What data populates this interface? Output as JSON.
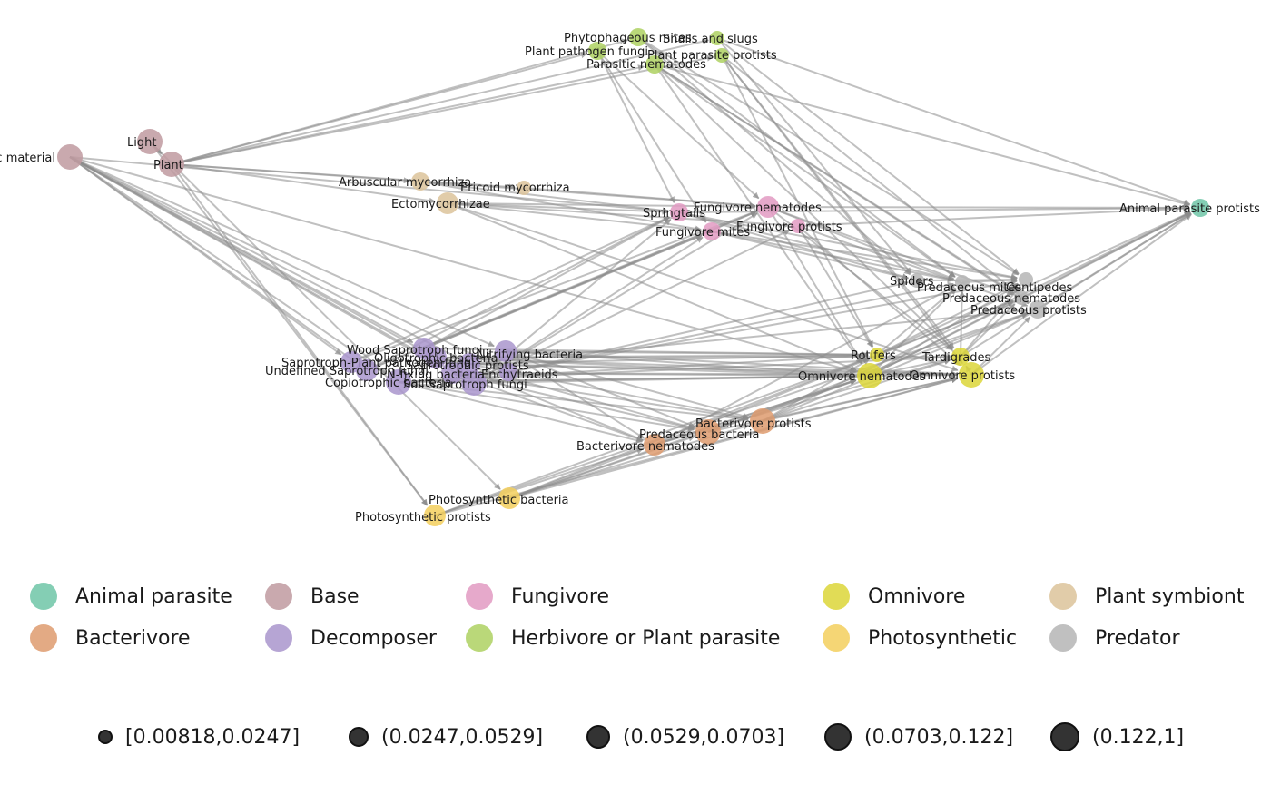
{
  "colors": {
    "Animal parasite": "#6fc6a7",
    "Base": "#c09aa0",
    "Fungivore": "#e29ac2",
    "Omnivore": "#dcd638",
    "Plant symbiont": "#dcc39a",
    "Bacterivore": "#de9b6f",
    "Decomposer": "#a995cc",
    "Herbivore or Plant parasite": "#aed162",
    "Photosynthetic": "#f3cf5d",
    "Predator": "#b5b5b5"
  },
  "nodes": [
    {
      "id": "organic",
      "label": "Organic material",
      "group": "Base",
      "size": 3
    },
    {
      "id": "light",
      "label": "Light",
      "group": "Base",
      "size": 3
    },
    {
      "id": "plant",
      "label": "Plant",
      "group": "Base",
      "size": 3
    },
    {
      "id": "phyto_mites",
      "label": "Phytophageous mites",
      "group": "Herbivore or Plant parasite",
      "size": 1
    },
    {
      "id": "snails",
      "label": "Snails and slugs",
      "group": "Herbivore or Plant parasite",
      "size": 0
    },
    {
      "id": "plant_path_fungi",
      "label": "Plant pathogen fungi",
      "group": "Herbivore or Plant parasite",
      "size": 1
    },
    {
      "id": "plant_par_protists",
      "label": "Plant parasite protists",
      "group": "Herbivore or Plant parasite",
      "size": 0
    },
    {
      "id": "par_nematodes",
      "label": "Parasitic nematodes",
      "group": "Herbivore or Plant parasite",
      "size": 1
    },
    {
      "id": "arb_myc",
      "label": "Arbuscular mycorrhiza",
      "group": "Plant symbiont",
      "size": 1
    },
    {
      "id": "ericoid",
      "label": "Ericoid mycorrhiza",
      "group": "Plant symbiont",
      "size": 0
    },
    {
      "id": "ecto",
      "label": "Ectomycorrhizae",
      "group": "Plant symbiont",
      "size": 2
    },
    {
      "id": "springtails",
      "label": "Springtails",
      "group": "Fungivore",
      "size": 1
    },
    {
      "id": "fung_nem",
      "label": "Fungivore nematodes",
      "group": "Fungivore",
      "size": 2
    },
    {
      "id": "fung_prot",
      "label": "Fungivore protists",
      "group": "Fungivore",
      "size": 0
    },
    {
      "id": "fung_mites",
      "label": "Fungivore mites",
      "group": "Fungivore",
      "size": 1
    },
    {
      "id": "animal_par",
      "label": "Animal parasite protists",
      "group": "Animal parasite",
      "size": 1
    },
    {
      "id": "spiders",
      "label": "Spiders",
      "group": "Predator",
      "size": 0
    },
    {
      "id": "pred_mites",
      "label": "Predaceous mites",
      "group": "Predator",
      "size": 0
    },
    {
      "id": "centipedes",
      "label": "Centipedes",
      "group": "Predator",
      "size": 0
    },
    {
      "id": "pred_nem",
      "label": "Predaceous nematodes",
      "group": "Predator",
      "size": 0
    },
    {
      "id": "pred_prot",
      "label": "Predaceous protists",
      "group": "Predator",
      "size": 1
    },
    {
      "id": "wood_sap",
      "label": "Wood Saprotroph fungi",
      "group": "Decomposer",
      "size": 2
    },
    {
      "id": "oligo",
      "label": "Oligotrophic bacteria",
      "group": "Decomposer",
      "size": 2
    },
    {
      "id": "nitrifying",
      "label": "Nitrifying bacteria",
      "group": "Decomposer",
      "size": 2
    },
    {
      "id": "sap_pl",
      "label": "Saprotroph-Plant pathogen fungi",
      "group": "Decomposer",
      "size": 2
    },
    {
      "id": "sap_prot",
      "label": "Saprotrophic protists",
      "group": "Decomposer",
      "size": 2
    },
    {
      "id": "undef_sap",
      "label": "Undefined Saprotroph fungi",
      "group": "Decomposer",
      "size": 2
    },
    {
      "id": "nfix",
      "label": "N-fixing bacteria",
      "group": "Decomposer",
      "size": 2
    },
    {
      "id": "enchy",
      "label": "Enchytraeids",
      "group": "Decomposer",
      "size": 1
    },
    {
      "id": "copio",
      "label": "Copiotrophic bacteria",
      "group": "Decomposer",
      "size": 3
    },
    {
      "id": "soil_sap",
      "label": "Soil Saprotroph fungi",
      "group": "Decomposer",
      "size": 3
    },
    {
      "id": "rotifers",
      "label": "Rotifers",
      "group": "Omnivore",
      "size": 0
    },
    {
      "id": "tardigrades",
      "label": "Tardigrades",
      "group": "Omnivore",
      "size": 1
    },
    {
      "id": "omni_nem",
      "label": "Omnivore nematodes",
      "group": "Omnivore",
      "size": 3
    },
    {
      "id": "omni_prot",
      "label": "Omnivore protists",
      "group": "Omnivore",
      "size": 3
    },
    {
      "id": "bact_prot",
      "label": "Bacterivore protists",
      "group": "Bacterivore",
      "size": 3
    },
    {
      "id": "pred_bact",
      "label": "Predaceous bacteria",
      "group": "Bacterivore",
      "size": 3
    },
    {
      "id": "bact_nem",
      "label": "Bacterivore nematodes",
      "group": "Bacterivore",
      "size": 2
    },
    {
      "id": "photo_bact",
      "label": "Photosynthetic bacteria",
      "group": "Photosynthetic",
      "size": 2
    },
    {
      "id": "photo_prot",
      "label": "Photosynthetic protists",
      "group": "Photosynthetic",
      "size": 2
    }
  ],
  "edges": [
    [
      "organic",
      "wood_sap"
    ],
    [
      "organic",
      "oligo"
    ],
    [
      "organic",
      "sap_prot"
    ],
    [
      "organic",
      "copio"
    ],
    [
      "organic",
      "soil_sap"
    ],
    [
      "organic",
      "undef_sap"
    ],
    [
      "organic",
      "enchy"
    ],
    [
      "organic",
      "springtails"
    ],
    [
      "organic",
      "omni_nem"
    ],
    [
      "organic",
      "sap_pl"
    ],
    [
      "organic",
      "nitrifying"
    ],
    [
      "organic",
      "nfix"
    ],
    [
      "light",
      "plant"
    ],
    [
      "light",
      "photo_bact"
    ],
    [
      "light",
      "photo_prot"
    ],
    [
      "plant",
      "phyto_mites"
    ],
    [
      "plant",
      "snails"
    ],
    [
      "plant",
      "plant_path_fungi"
    ],
    [
      "plant",
      "plant_par_protists"
    ],
    [
      "plant",
      "par_nematodes"
    ],
    [
      "plant",
      "arb_myc"
    ],
    [
      "plant",
      "ericoid"
    ],
    [
      "plant",
      "ecto"
    ],
    [
      "plant",
      "photo_prot"
    ],
    [
      "arb_myc",
      "springtails"
    ],
    [
      "arb_myc",
      "fung_nem"
    ],
    [
      "arb_myc",
      "fung_mites"
    ],
    [
      "ecto",
      "springtails"
    ],
    [
      "ecto",
      "fung_nem"
    ],
    [
      "ecto",
      "fung_prot"
    ],
    [
      "ecto",
      "fung_mites"
    ],
    [
      "ecto",
      "omni_nem"
    ],
    [
      "ecto",
      "omni_prot"
    ],
    [
      "ericoid",
      "fung_nem"
    ],
    [
      "plant_path_fungi",
      "springtails"
    ],
    [
      "plant_path_fungi",
      "fung_nem"
    ],
    [
      "plant_path_fungi",
      "fung_mites"
    ],
    [
      "phyto_mites",
      "pred_mites"
    ],
    [
      "phyto_mites",
      "spiders"
    ],
    [
      "phyto_mites",
      "centipedes"
    ],
    [
      "snails",
      "centipedes"
    ],
    [
      "snails",
      "spiders"
    ],
    [
      "snails",
      "animal_par"
    ],
    [
      "par_nematodes",
      "pred_nem"
    ],
    [
      "par_nematodes",
      "pred_mites"
    ],
    [
      "par_nematodes",
      "omni_nem"
    ],
    [
      "par_nematodes",
      "tardigrades"
    ],
    [
      "par_nematodes",
      "pred_prot"
    ],
    [
      "par_nematodes",
      "animal_par"
    ],
    [
      "plant_par_protists",
      "pred_prot"
    ],
    [
      "plant_par_protists",
      "omni_prot"
    ],
    [
      "plant_par_protists",
      "rotifers"
    ],
    [
      "plant_par_protists",
      "tardigrades"
    ],
    [
      "springtails",
      "spiders"
    ],
    [
      "springtails",
      "pred_mites"
    ],
    [
      "springtails",
      "centipedes"
    ],
    [
      "springtails",
      "animal_par"
    ],
    [
      "fung_nem",
      "pred_nem"
    ],
    [
      "fung_nem",
      "omni_nem"
    ],
    [
      "fung_nem",
      "pred_mites"
    ],
    [
      "fung_nem",
      "tardigrades"
    ],
    [
      "fung_nem",
      "animal_par"
    ],
    [
      "fung_prot",
      "pred_prot"
    ],
    [
      "fung_prot",
      "omni_prot"
    ],
    [
      "fung_prot",
      "rotifers"
    ],
    [
      "fung_prot",
      "animal_par"
    ],
    [
      "fung_mites",
      "pred_mites"
    ],
    [
      "fung_mites",
      "centipedes"
    ],
    [
      "fung_mites",
      "spiders"
    ],
    [
      "wood_sap",
      "springtails"
    ],
    [
      "wood_sap",
      "fung_mites"
    ],
    [
      "wood_sap",
      "fung_nem"
    ],
    [
      "wood_sap",
      "rotifers"
    ],
    [
      "soil_sap",
      "springtails"
    ],
    [
      "soil_sap",
      "fung_mites"
    ],
    [
      "soil_sap",
      "fung_nem"
    ],
    [
      "soil_sap",
      "fung_prot"
    ],
    [
      "soil_sap",
      "omni_nem"
    ],
    [
      "undef_sap",
      "fung_mites"
    ],
    [
      "undef_sap",
      "springtails"
    ],
    [
      "undef_sap",
      "fung_nem"
    ],
    [
      "sap_pl",
      "springtails"
    ],
    [
      "sap_pl",
      "fung_nem"
    ],
    [
      "copio",
      "bact_prot"
    ],
    [
      "copio",
      "pred_bact"
    ],
    [
      "copio",
      "bact_nem"
    ],
    [
      "copio",
      "rotifers"
    ],
    [
      "copio",
      "tardigrades"
    ],
    [
      "copio",
      "omni_nem"
    ],
    [
      "copio",
      "omni_prot"
    ],
    [
      "oligo",
      "bact_prot"
    ],
    [
      "oligo",
      "pred_bact"
    ],
    [
      "oligo",
      "bact_nem"
    ],
    [
      "oligo",
      "rotifers"
    ],
    [
      "oligo",
      "omni_nem"
    ],
    [
      "oligo",
      "omni_prot"
    ],
    [
      "oligo",
      "tardigrades"
    ],
    [
      "nitrifying",
      "bact_prot"
    ],
    [
      "nitrifying",
      "pred_bact"
    ],
    [
      "nitrifying",
      "bact_nem"
    ],
    [
      "nitrifying",
      "omni_nem"
    ],
    [
      "nitrifying",
      "omni_prot"
    ],
    [
      "nitrifying",
      "rotifers"
    ],
    [
      "nfix",
      "bact_prot"
    ],
    [
      "nfix",
      "pred_bact"
    ],
    [
      "nfix",
      "bact_nem"
    ],
    [
      "nfix",
      "omni_nem"
    ],
    [
      "nfix",
      "omni_prot"
    ],
    [
      "sap_prot",
      "omni_prot"
    ],
    [
      "sap_prot",
      "pred_prot"
    ],
    [
      "sap_prot",
      "omni_nem"
    ],
    [
      "sap_prot",
      "rotifers"
    ],
    [
      "enchy",
      "centipedes"
    ],
    [
      "enchy",
      "pred_mites"
    ],
    [
      "enchy",
      "spiders"
    ],
    [
      "photo_bact",
      "bact_prot"
    ],
    [
      "photo_bact",
      "pred_bact"
    ],
    [
      "photo_bact",
      "bact_nem"
    ],
    [
      "photo_bact",
      "omni_nem"
    ],
    [
      "photo_bact",
      "omni_prot"
    ],
    [
      "photo_bact",
      "rotifers"
    ],
    [
      "photo_prot",
      "omni_prot"
    ],
    [
      "photo_prot",
      "omni_nem"
    ],
    [
      "photo_prot",
      "pred_prot"
    ],
    [
      "photo_prot",
      "rotifers"
    ],
    [
      "bact_prot",
      "pred_prot"
    ],
    [
      "bact_prot",
      "omni_prot"
    ],
    [
      "bact_prot",
      "rotifers"
    ],
    [
      "bact_prot",
      "tardigrades"
    ],
    [
      "bact_prot",
      "animal_par"
    ],
    [
      "bact_nem",
      "pred_nem"
    ],
    [
      "bact_nem",
      "omni_nem"
    ],
    [
      "bact_nem",
      "pred_mites"
    ],
    [
      "bact_nem",
      "tardigrades"
    ],
    [
      "pred_bact",
      "omni_nem"
    ],
    [
      "pred_bact",
      "omni_prot"
    ],
    [
      "pred_bact",
      "pred_prot"
    ],
    [
      "rotifers",
      "pred_nem"
    ],
    [
      "rotifers",
      "pred_mites"
    ],
    [
      "rotifers",
      "centipedes"
    ],
    [
      "rotifers",
      "animal_par"
    ],
    [
      "tardigrades",
      "pred_nem"
    ],
    [
      "tardigrades",
      "pred_mites"
    ],
    [
      "tardigrades",
      "centipedes"
    ],
    [
      "tardigrades",
      "animal_par"
    ],
    [
      "omni_nem",
      "pred_nem"
    ],
    [
      "omni_nem",
      "pred_mites"
    ],
    [
      "omni_nem",
      "centipedes"
    ],
    [
      "omni_nem",
      "tardigrades"
    ],
    [
      "omni_nem",
      "animal_par"
    ],
    [
      "omni_prot",
      "pred_prot"
    ],
    [
      "omni_prot",
      "tardigrades"
    ],
    [
      "omni_prot",
      "animal_par"
    ],
    [
      "pred_prot",
      "animal_par"
    ],
    [
      "pred_nem",
      "animal_par"
    ],
    [
      "pred_mites",
      "centipedes"
    ],
    [
      "spiders",
      "centipedes"
    ]
  ],
  "legend": {
    "rows": [
      [
        "Animal parasite",
        "Base",
        "Fungivore",
        "Omnivore",
        "Plant symbiont"
      ],
      [
        "Bacterivore",
        "Decomposer",
        "Herbivore or Plant parasite",
        "Photosynthetic",
        "Predator"
      ]
    ]
  },
  "size_legend": [
    {
      "label": "[0.00818,0.0247]"
    },
    {
      "label": "(0.0247,0.0529]"
    },
    {
      "label": "(0.0529,0.0703]"
    },
    {
      "label": "(0.0703,0.122]"
    },
    {
      "label": "(0.122,1]"
    }
  ]
}
